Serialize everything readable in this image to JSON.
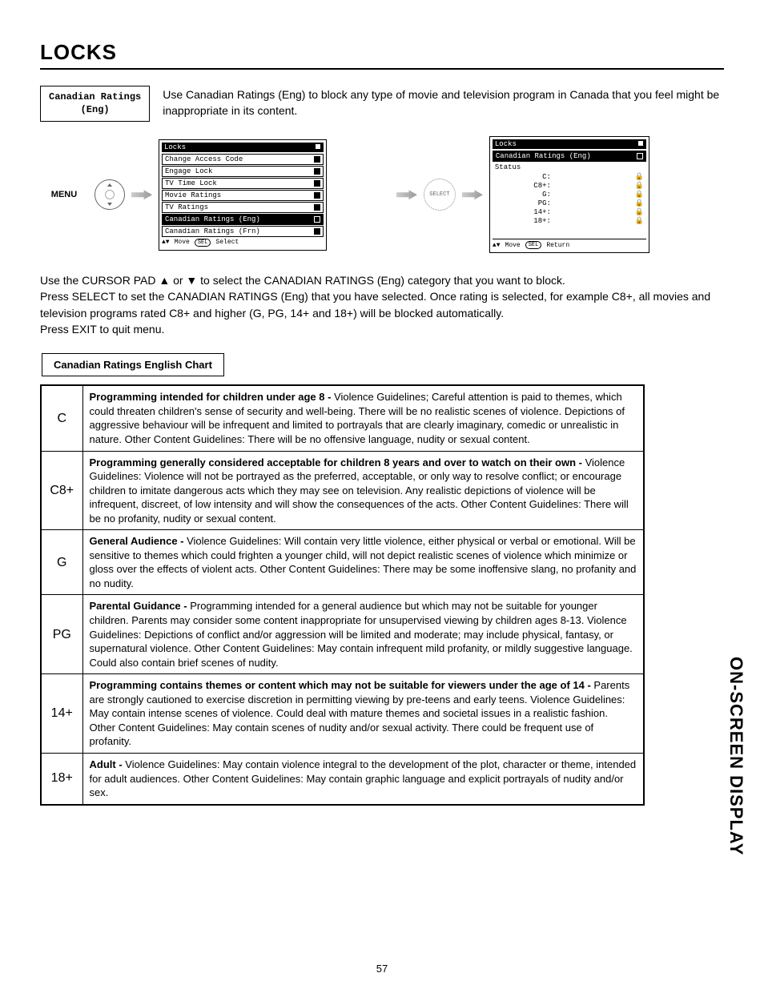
{
  "page": {
    "title": "LOCKS",
    "sidebar": "ON-SCREEN DISPLAY",
    "number": "57"
  },
  "intro": {
    "box_line1": "Canadian Ratings",
    "box_line2": "(Eng)",
    "text": "Use Canadian Ratings (Eng) to block any type of movie and television program in Canada that you feel might be inappropriate in its content."
  },
  "menu_label": "MENU",
  "select_label": "SELECT",
  "osd1": {
    "title": "Locks",
    "items": [
      {
        "label": "Change Access Code",
        "hl": false
      },
      {
        "label": "Engage Lock",
        "hl": false
      },
      {
        "label": "TV Time Lock",
        "hl": false
      },
      {
        "label": "Movie Ratings",
        "hl": false
      },
      {
        "label": "TV Ratings",
        "hl": false
      },
      {
        "label": "Canadian Ratings (Eng)",
        "hl": true
      },
      {
        "label": "Canadian Ratings (Frn)",
        "hl": false
      }
    ],
    "footer_move": "Move",
    "footer_sel": "Select"
  },
  "osd2": {
    "title": "Locks",
    "subtitle": "Canadian Ratings (Eng)",
    "status_label": "Status",
    "rows": [
      {
        "label": "C:"
      },
      {
        "label": "C8+:"
      },
      {
        "label": "G:"
      },
      {
        "label": "PG:"
      },
      {
        "label": "14+:"
      },
      {
        "label": "18+:"
      }
    ],
    "footer_move": "Move",
    "footer_ret": "Return"
  },
  "instructions": {
    "l1": "Use the CURSOR PAD ▲ or ▼ to select the CANADIAN RATINGS (Eng) category that you want to block.",
    "l2": "Press SELECT to set the CANADIAN RATINGS (Eng) that you have selected. Once rating is selected, for example C8+, all movies and television programs rated C8+ and higher (G, PG, 14+ and 18+) will be blocked automatically.",
    "l3": "Press EXIT to quit menu."
  },
  "chart": {
    "label": "Canadian Ratings English Chart",
    "rows": [
      {
        "code": "C",
        "lead": "Programming intended for children under age 8 - ",
        "body": "Violence Guidelines; Careful attention is paid to themes, which could threaten children's sense of security and well-being.  There will be no realistic scenes of violence.  Depictions of aggressive behaviour will be infrequent and limited to portrayals that are clearly imaginary, comedic or unrealistic in nature.  Other Content Guidelines:  There will be no offensive language, nudity or sexual content."
      },
      {
        "code": "C8+",
        "lead": "Programming generally considered acceptable for children 8 years and over to watch on their own -  ",
        "body": "Violence Guidelines: Violence will not be portrayed as the preferred, acceptable, or only way to resolve conflict; or encourage children to imitate dangerous acts which they may see on television.  Any realistic depictions of violence will be infrequent, discreet, of low intensity and will show the consequences of the acts.  Other Content Guidelines: There will be no profanity, nudity or sexual content."
      },
      {
        "code": "G",
        "lead": "General Audience - ",
        "body": "Violence Guidelines: Will contain very little violence, either physical or verbal or emotional.  Will be sensitive to themes which could frighten a younger child, will not depict realistic scenes of violence which minimize or gloss over the effects of violent acts.  Other Content Guidelines: There may be some inoffensive slang, no profanity and no nudity."
      },
      {
        "code": "PG",
        "lead": "Parental Guidance -  ",
        "body": "Programming intended for a general audience but which may not be suitable for younger children.  Parents may consider some content inappropriate for unsupervised viewing by children ages 8-13.  Violence Guidelines: Depictions of conflict and/or aggression will be limited and moderate; may include physical, fantasy, or supernatural violence.  Other Content Guidelines:  May contain infrequent mild profanity, or mildly suggestive language.  Could also contain brief scenes of nudity."
      },
      {
        "code": "14+",
        "lead": "Programming contains themes or content which may not be suitable for viewers under the age of 14 -  ",
        "body": "Parents are strongly cautioned to exercise discretion in permitting viewing by pre-teens and early teens.  Violence Guidelines: May contain intense scenes of violence.  Could deal with mature themes and societal issues in a realistic fashion.  Other Content Guidelines: May contain scenes of nudity and/or sexual activity.  There could be frequent use of profanity."
      },
      {
        "code": "18+",
        "lead": "Adult - ",
        "body": "Violence Guidelines: May contain violence integral to the development of the plot, character or theme, intended for adult audiences.  Other Content Guidelines: May contain graphic language and explicit portrayals of nudity and/or sex."
      }
    ]
  }
}
